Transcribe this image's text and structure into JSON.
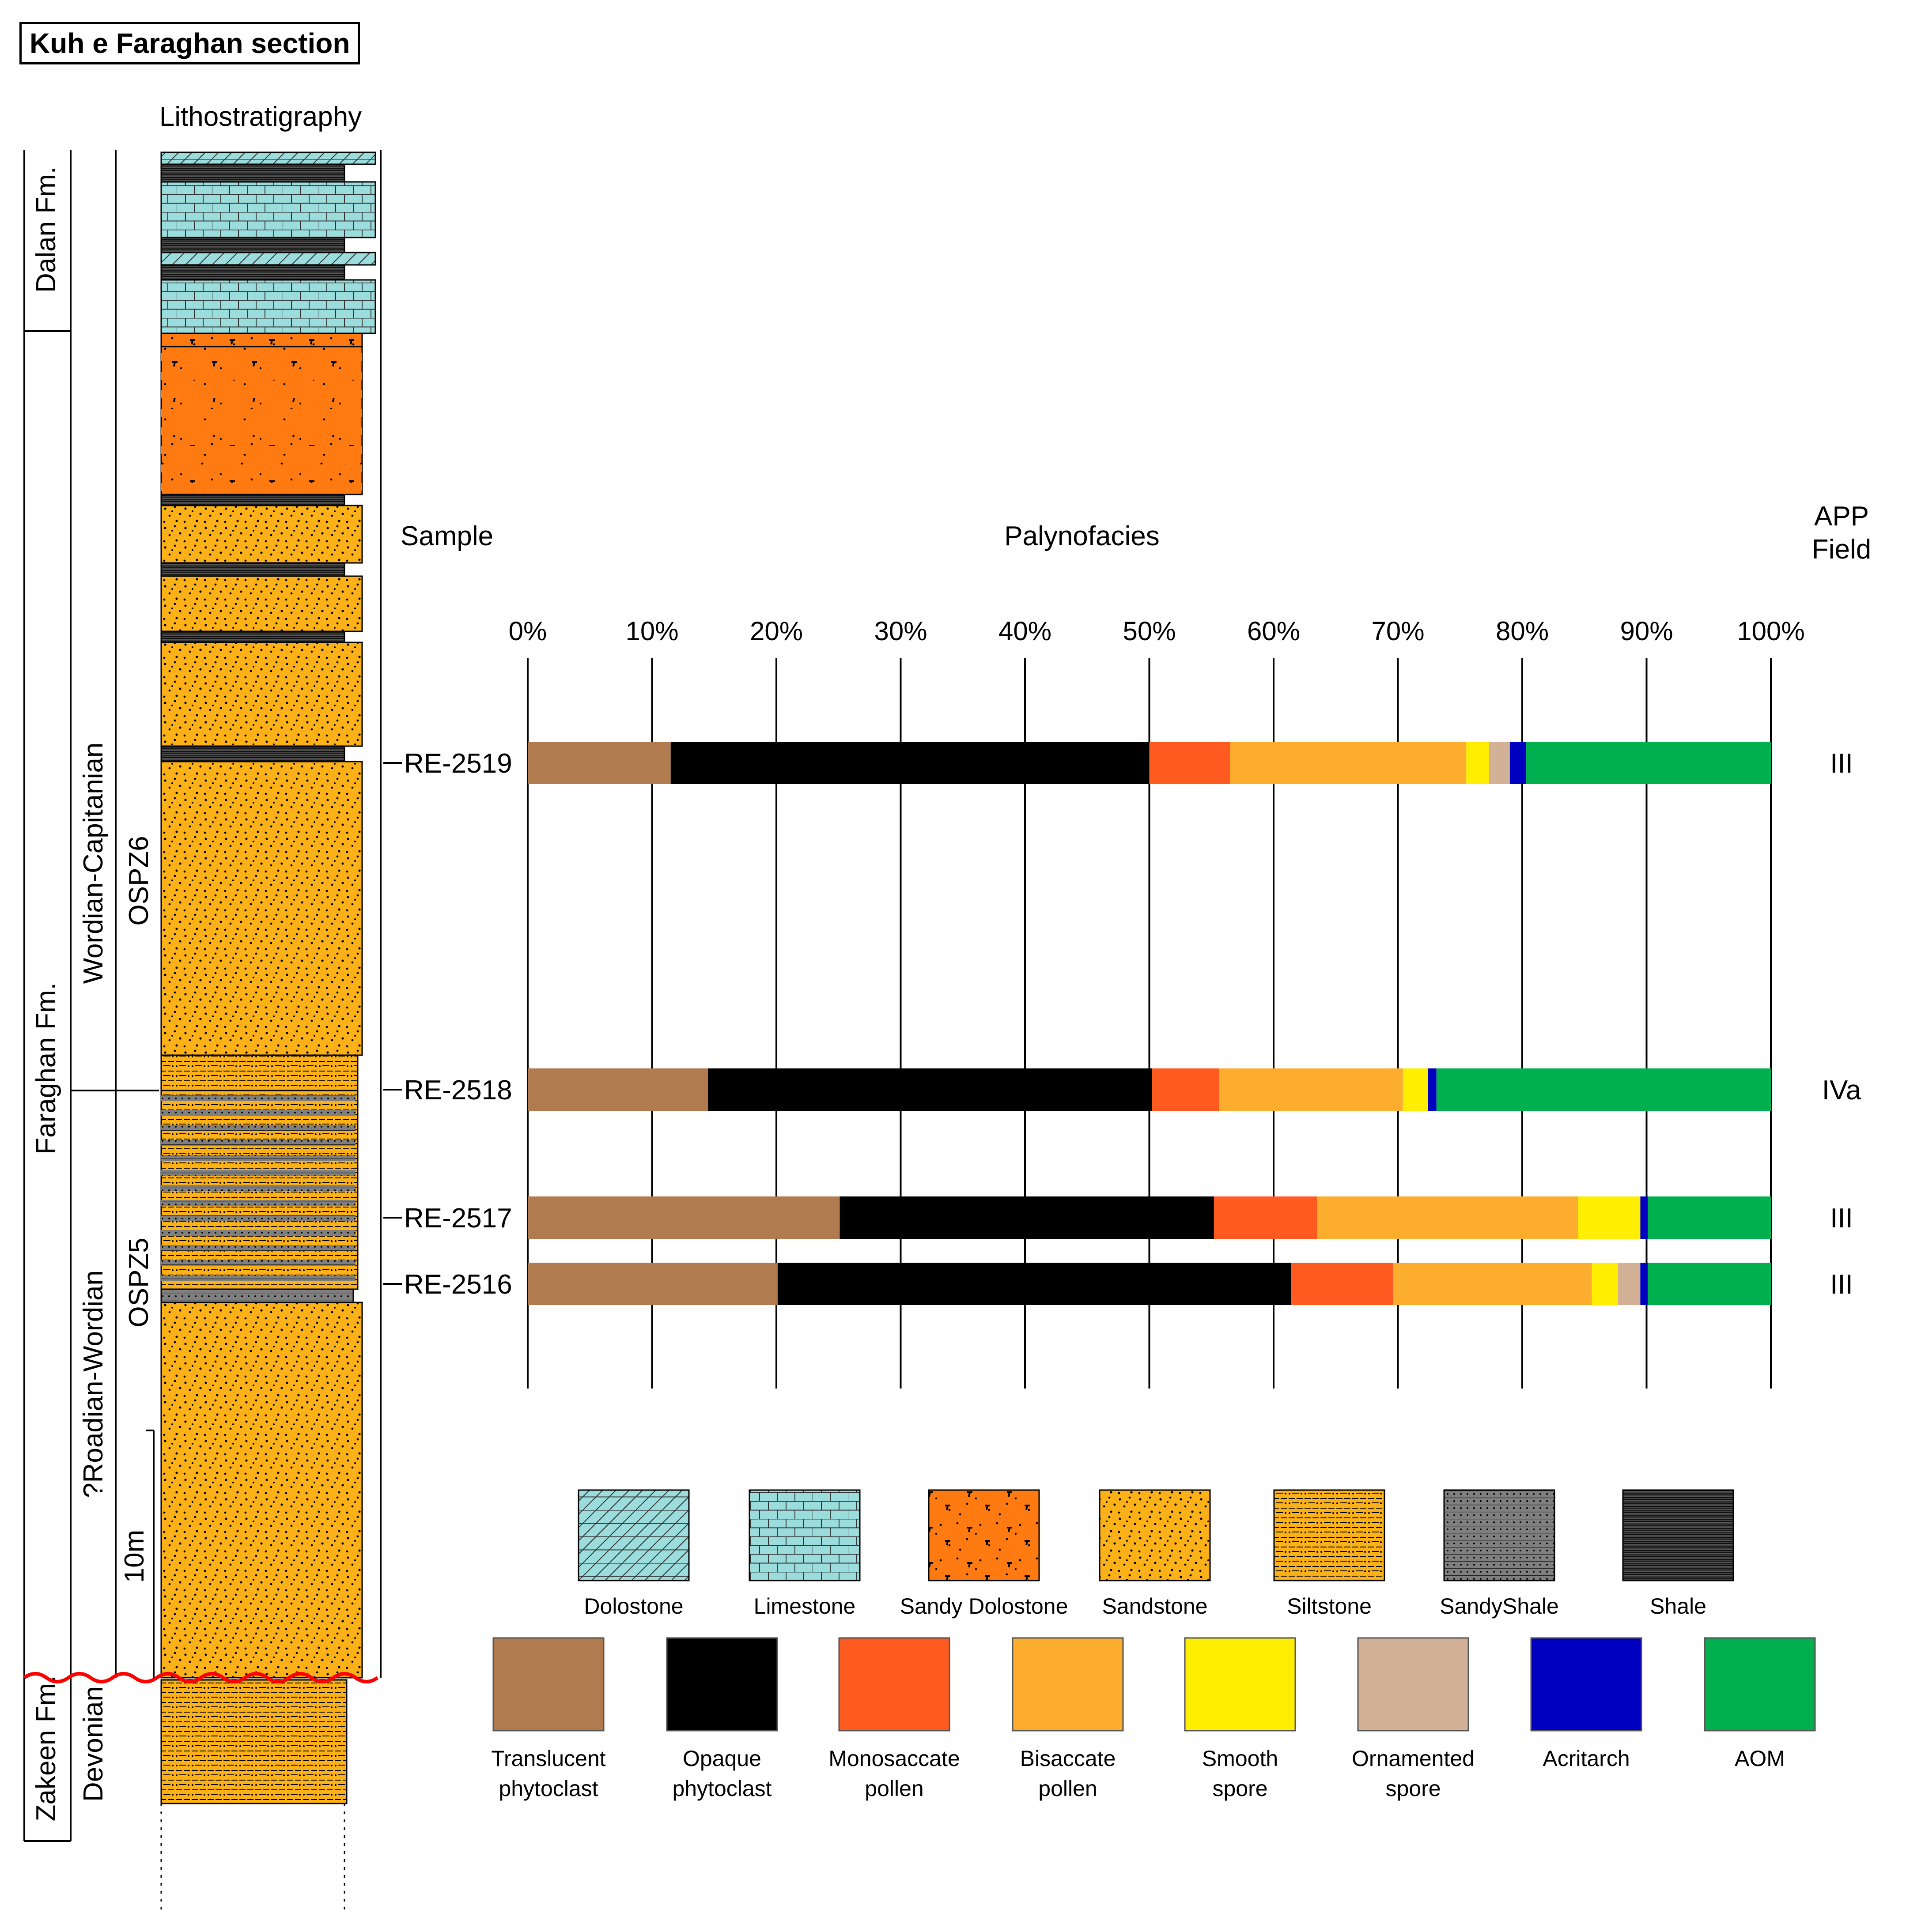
{
  "title": "Kuh e Faraghan section",
  "headers": {
    "lithostratigraphy": "Lithostratigraphy",
    "sample": "Sample",
    "palynofacies": "Palynofacies",
    "app_field_line1": "APP",
    "app_field_line2": "Field"
  },
  "strat": {
    "formations": [
      "Dalan Fm.",
      "Faraghan Fm.",
      "Zakeen Fm."
    ],
    "ages": [
      "Wordian-Capitanian",
      "?Roadian-Wordian",
      "Devonian"
    ],
    "zones": [
      "OSPZ6",
      "OSPZ5"
    ],
    "scale_label": "10m"
  },
  "colors": {
    "Translucent phytoclast": "#b07b4f",
    "Opaque phytoclast": "#000000",
    "Monosaccate pollen": "#ff5a1f",
    "Bisaccate pollen": "#fdad2e",
    "Smooth spore": "#ffee00",
    "Ornamented spore": "#d2b196",
    "Acritarch": "#0000c0",
    "AOM": "#00b04f",
    "dolostone_fill": "#9bdcdc",
    "sandstone_fill": "#fbb117",
    "sandy_dolostone_fill": "#ff7a10",
    "sandy_shale_fill": "#7f7f7f",
    "shale_fill": "#3a3a3a",
    "unconformity": "#ff0000"
  },
  "chart_data": {
    "type": "bar",
    "orientation": "horizontal-stacked",
    "title": "Palynofacies",
    "xlim": [
      0,
      100
    ],
    "x_ticks": [
      "0%",
      "10%",
      "20%",
      "30%",
      "40%",
      "50%",
      "60%",
      "70%",
      "80%",
      "90%",
      "100%"
    ],
    "grid": true,
    "categories": [
      "Translucent phytoclast",
      "Opaque phytoclast",
      "Monosaccate pollen",
      "Bisaccate pollen",
      "Smooth spore",
      "Ornamented spore",
      "Acritarch",
      "AOM"
    ],
    "samples": [
      {
        "name": "RE-2519",
        "app_field": "III",
        "values": [
          11.5,
          38.5,
          6.5,
          19,
          1.8,
          1.7,
          1.3,
          19.7
        ]
      },
      {
        "name": "RE-2518",
        "app_field": "IVa",
        "values": [
          14.5,
          35.7,
          5.4,
          14.8,
          2,
          0,
          0.7,
          26.9
        ]
      },
      {
        "name": "RE-2517",
        "app_field": "III",
        "values": [
          25.1,
          30.1,
          8.3,
          21,
          5,
          0,
          0.6,
          9.9
        ]
      },
      {
        "name": "RE-2516",
        "app_field": "III",
        "values": [
          20.1,
          41.3,
          8.2,
          16,
          2.1,
          1.8,
          0.6,
          9.9
        ]
      }
    ]
  },
  "legend": {
    "lithology": [
      "Dolostone",
      "Limestone",
      "Sandy Dolostone",
      "Sandstone",
      "Siltstone",
      "SandyShale",
      "Shale"
    ],
    "components": [
      {
        "line1": "Translucent",
        "line2": "phytoclast"
      },
      {
        "line1": "Opaque",
        "line2": "phytoclast"
      },
      {
        "line1": "Monosaccate",
        "line2": "pollen"
      },
      {
        "line1": "Bisaccate",
        "line2": "pollen"
      },
      {
        "line1": "Smooth",
        "line2": "spore"
      },
      {
        "line1": "Ornamented",
        "line2": "spore"
      },
      {
        "line1": "Acritarch",
        "line2": ""
      },
      {
        "line1": "AOM",
        "line2": ""
      }
    ]
  }
}
